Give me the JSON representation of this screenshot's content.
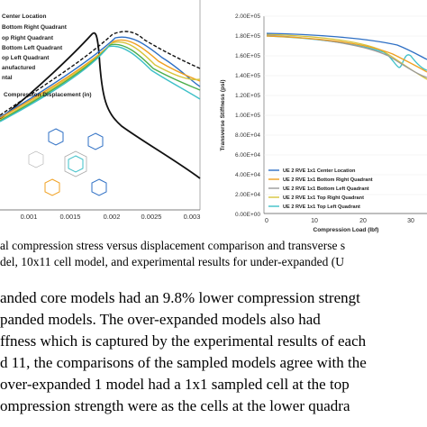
{
  "left_chart": {
    "legend": [
      "Center Location",
      "Bottom Right Quadrant",
      "op Right Quadrant",
      "Bottom Left Quadrant",
      "op Left Quadrant",
      "anufactured",
      "ntal"
    ],
    "legend_colors": [
      "#2e6fc4",
      "#f0a020",
      "#d7c43a",
      "#4cae4c",
      "#3ec0c8",
      "#111111",
      "#111111"
    ],
    "x_ticks": [
      "0.001",
      "0.0015",
      "0.002",
      "0.0025",
      "0.003"
    ],
    "x_label": "Compression Displacement (in)"
  },
  "right_chart": {
    "y_ticks": [
      "2.00E+05",
      "1.80E+05",
      "1.60E+05",
      "1.40E+05",
      "1.20E+05",
      "1.00E+05",
      "8.00E+04",
      "6.00E+04",
      "4.00E+04",
      "2.00E+04",
      "0.00E+00"
    ],
    "x_ticks": [
      "0",
      "10",
      "20",
      "30"
    ],
    "y_label": "Transverse Stiffness (psi)",
    "x_label": "Compression Load (lbf)",
    "legend": [
      "UE 2 RVE 1x1 Center Location",
      "UE 2 RVE 1x1 Bottom Right Quadrant",
      "UE 2 RVE 1x1 Bottom Left Quadrant",
      "UE 2 RVE 1x1 Top Right Quadrant",
      "UE 2 RVE 1x1 Top Left Quadrant"
    ],
    "legend_colors": [
      "#2e6fc4",
      "#f0a020",
      "#9a9a9a",
      "#d7c43a",
      "#3ec0c8"
    ]
  },
  "caption": {
    "line1": "al compression stress versus displacement comparison and transverse s",
    "line2": "del, 10x11 cell model, and experimental results for under-expanded (U"
  },
  "body": {
    "line1": "anded core models had an 9.8% lower compression strengt",
    "line2": "panded  models.  The  over-expanded  models  also  had",
    "line3": "ffness which is captured by the experimental results of each",
    "line4": "d 11, the comparisons of the sampled models agree with the",
    "line5": " over-expanded 1 model had a 1x1 sampled cell at the top",
    "line6": "ompression strength were as the cells at the lower quadra"
  }
}
